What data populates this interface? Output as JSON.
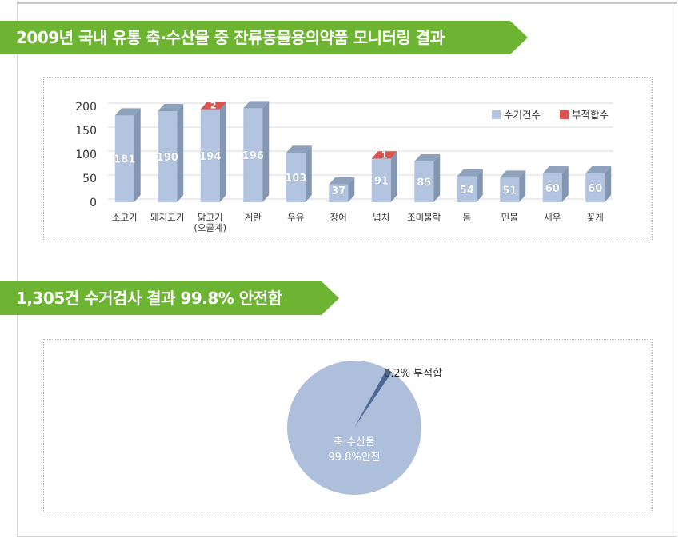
{
  "section1": {
    "title": "2009년 국내 유통 축·수산물 중 잔류동물용의약품 모니터링 결과"
  },
  "section2": {
    "title": "1,305건 수거검사 결과 99.8% 안전함"
  },
  "colors": {
    "banner": "#6cb431",
    "bar_front": "#b2c4df",
    "bar_top": "#8fa2bc",
    "bar_side": "#8497b2",
    "fail": "#d9534f",
    "pie_safe": "#aebfdc",
    "pie_fail": "#4e6a93"
  },
  "chart_data": [
    {
      "type": "bar",
      "stacked": true,
      "style": "3d-column",
      "categories": [
        "소고기",
        "돼지고기",
        "닭고기\n(오골계)",
        "계란",
        "우유",
        "장어",
        "넙치",
        "조미불락",
        "돔",
        "민물",
        "새우",
        "꽃게"
      ],
      "series": [
        {
          "name": "수거건수",
          "color": "#b2c4df",
          "values": [
            181,
            190,
            194,
            196,
            103,
            37,
            91,
            85,
            54,
            51,
            60,
            60
          ]
        },
        {
          "name": "부적합수",
          "color": "#d9534f",
          "values": [
            0,
            0,
            2,
            0,
            0,
            0,
            1,
            0,
            0,
            0,
            0,
            0
          ]
        }
      ],
      "yticks": [
        0,
        50,
        100,
        150,
        200
      ],
      "ylim": [
        0,
        200
      ],
      "grid": true,
      "legend": "top-right"
    },
    {
      "type": "pie",
      "slices": [
        {
          "label": "축·수산물",
          "sublabel": "99.8%안전",
          "value": 99.8,
          "color": "#aebfdc"
        },
        {
          "label": "0.2% 부적합",
          "value": 0.2,
          "color": "#4e6a93"
        }
      ]
    }
  ]
}
